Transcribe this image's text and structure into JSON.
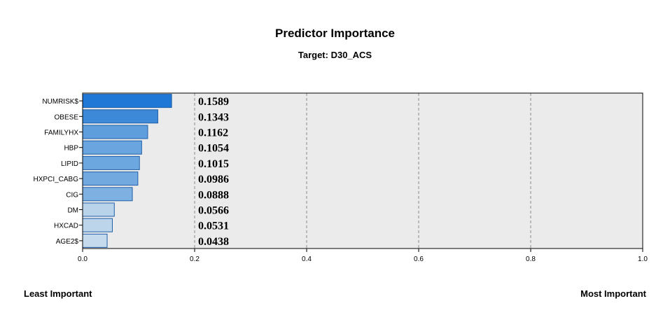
{
  "chart_data": {
    "type": "bar",
    "orientation": "horizontal",
    "title": "Predictor Importance",
    "subtitle": "Target: D30_ACS",
    "categories": [
      "NUMRISK$",
      "OBESE",
      "FAMILYHX",
      "HBP",
      "LIPID",
      "HXPCI_CABG",
      "CIG",
      "DM",
      "HXCAD",
      "AGE2$"
    ],
    "values": [
      0.1589,
      0.1343,
      0.1162,
      0.1054,
      0.1015,
      0.0986,
      0.0888,
      0.0566,
      0.0531,
      0.0438
    ],
    "data_labels": [
      "0.1589",
      "0.1343",
      "0.1162",
      "0.1054",
      "0.1015",
      "0.0986",
      "0.0888",
      "0.0566",
      "0.0531",
      "0.0438"
    ],
    "bar_colors": [
      "#1f78d6",
      "#3d89d8",
      "#5e9edd",
      "#6aa5df",
      "#6da7df",
      "#72aae0",
      "#7eb1e1",
      "#b9d3ea",
      "#bcd5ea",
      "#c5dbed"
    ],
    "xlim": [
      0,
      1.0
    ],
    "x_ticks": [
      "0.0",
      "0.2",
      "0.4",
      "0.6",
      "0.8",
      "1.0"
    ],
    "grid": "vertical dashed",
    "plot_background": "#ebebeb",
    "bar_border_color": "#1f5fa8",
    "least_label": "Least Important",
    "most_label": "Most Important"
  }
}
